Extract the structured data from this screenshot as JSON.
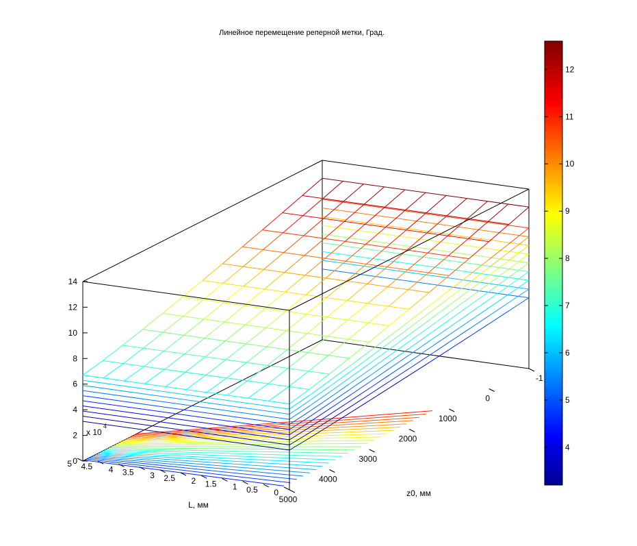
{
  "chart_data": {
    "type": "surface3d",
    "title": "Линейное перемещение реперной метки, Град.",
    "xlabel": "L, мм",
    "ylabel": "z0, мм",
    "zlabel": "",
    "x_axis": {
      "range": [
        0,
        50000
      ],
      "exponent_label": "x 10",
      "exponent_value": "4",
      "tick_labels": [
        "0",
        "0.5",
        "1",
        "1.5",
        "2",
        "2.5",
        "3",
        "3.5",
        "4",
        "4.5",
        "5"
      ]
    },
    "y_axis": {
      "range": [
        5000,
        -1000
      ],
      "tick_labels": [
        "5000",
        "4000",
        "3000",
        "2000",
        "1000",
        "0",
        "-1"
      ]
    },
    "z_axis": {
      "range": [
        0,
        14
      ],
      "tick_labels": [
        "0",
        "2",
        "4",
        "6",
        "8",
        "10",
        "12",
        "14"
      ]
    },
    "colorbar": {
      "range": [
        3.2,
        12.6
      ],
      "tick_labels": [
        "4",
        "5",
        "6",
        "7",
        "8",
        "9",
        "10",
        "11",
        "12"
      ],
      "colormap": "jet"
    },
    "surfaces_z_at_front_left_edge": [
      3.1,
      3.5,
      3.9,
      4.3,
      4.7,
      5.1,
      5.5,
      5.9,
      6.3,
      6.7
    ],
    "surface_z_at_back_corner": 12.6,
    "grid": false,
    "box": true
  }
}
